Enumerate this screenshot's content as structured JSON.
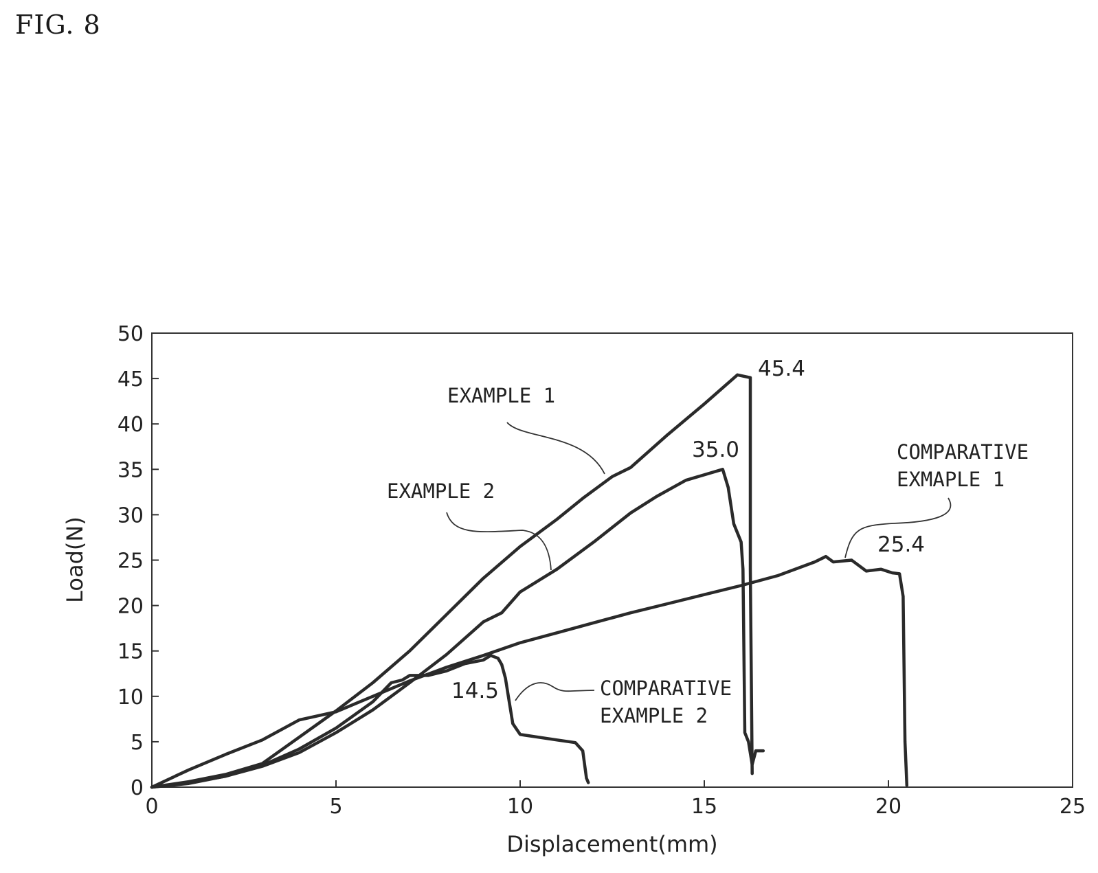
{
  "figure_label": "FIG. 8",
  "chart_data": {
    "type": "line",
    "xlabel": "Displacement(mm)",
    "ylabel": "Load(N)",
    "xlim": [
      0,
      25
    ],
    "ylim": [
      0,
      50
    ],
    "x_ticks": [
      0,
      5,
      10,
      15,
      20,
      25
    ],
    "y_ticks": [
      0,
      5,
      10,
      15,
      20,
      25,
      30,
      35,
      40,
      45,
      50
    ],
    "grid": false,
    "legend": "none",
    "series": [
      {
        "name": "EXAMPLE 1",
        "points": [
          [
            0,
            0
          ],
          [
            1,
            0.6
          ],
          [
            2,
            1.4
          ],
          [
            3,
            2.6
          ],
          [
            4,
            5.5
          ],
          [
            5,
            8.4
          ],
          [
            6,
            11.5
          ],
          [
            7,
            15
          ],
          [
            8,
            19
          ],
          [
            9,
            23
          ],
          [
            10,
            26.5
          ],
          [
            11,
            29.5
          ],
          [
            11.7,
            31.8
          ],
          [
            12.5,
            34.2
          ],
          [
            13,
            35.2
          ],
          [
            14,
            38.8
          ],
          [
            15,
            42.2
          ],
          [
            15.9,
            45.4
          ],
          [
            16.25,
            45.1
          ],
          [
            16.25,
            24
          ],
          [
            16.3,
            1.5
          ]
        ]
      },
      {
        "name": "EXAMPLE 2",
        "points": [
          [
            0,
            0
          ],
          [
            1,
            0.5
          ],
          [
            2,
            1.2
          ],
          [
            3,
            2.3
          ],
          [
            4,
            3.8
          ],
          [
            5,
            6
          ],
          [
            6,
            8.5
          ],
          [
            7,
            11.5
          ],
          [
            8,
            14.6
          ],
          [
            9,
            18.2
          ],
          [
            9.5,
            19.2
          ],
          [
            10,
            21.5
          ],
          [
            11,
            24
          ],
          [
            12,
            27
          ],
          [
            13,
            30.2
          ],
          [
            13.7,
            32
          ],
          [
            14.5,
            33.8
          ],
          [
            15.5,
            35
          ],
          [
            15.65,
            33
          ],
          [
            15.8,
            29
          ],
          [
            16,
            27
          ],
          [
            16.05,
            24
          ],
          [
            16.1,
            6
          ],
          [
            16.2,
            5
          ],
          [
            16.3,
            2.5
          ],
          [
            16.4,
            4
          ],
          [
            16.6,
            4
          ]
        ]
      },
      {
        "name": "COMPARATIVE EXMAPLE 1",
        "points": [
          [
            0,
            0
          ],
          [
            1,
            1.9
          ],
          [
            2,
            3.6
          ],
          [
            3,
            5.2
          ],
          [
            4,
            7.4
          ],
          [
            5,
            8.3
          ],
          [
            6,
            10
          ],
          [
            7,
            11.7
          ],
          [
            8,
            13.2
          ],
          [
            9,
            14.5
          ],
          [
            10,
            15.9
          ],
          [
            11,
            17
          ],
          [
            12,
            18.1
          ],
          [
            13,
            19.2
          ],
          [
            14,
            20.2
          ],
          [
            15,
            21.2
          ],
          [
            16,
            22.2
          ],
          [
            17,
            23.3
          ],
          [
            18,
            24.8
          ],
          [
            18.3,
            25.4
          ],
          [
            18.5,
            24.8
          ],
          [
            19,
            25
          ],
          [
            19.4,
            23.8
          ],
          [
            19.8,
            24
          ],
          [
            20.1,
            23.6
          ],
          [
            20.3,
            23.5
          ],
          [
            20.4,
            21
          ],
          [
            20.45,
            5
          ],
          [
            20.5,
            0.2
          ]
        ]
      },
      {
        "name": "COMPARATIVE EXAMPLE 2",
        "points": [
          [
            0,
            0
          ],
          [
            1,
            0.4
          ],
          [
            2,
            1.2
          ],
          [
            3,
            2.4
          ],
          [
            4,
            4.2
          ],
          [
            5,
            6.5
          ],
          [
            6,
            9.4
          ],
          [
            6.5,
            11.5
          ],
          [
            6.8,
            11.8
          ],
          [
            7,
            12.3
          ],
          [
            7.5,
            12.3
          ],
          [
            8,
            12.8
          ],
          [
            8.5,
            13.6
          ],
          [
            9,
            14
          ],
          [
            9.2,
            14.5
          ],
          [
            9.4,
            14.2
          ],
          [
            9.5,
            13.5
          ],
          [
            9.6,
            12
          ],
          [
            9.7,
            9.5
          ],
          [
            9.8,
            7
          ],
          [
            10,
            5.8
          ],
          [
            10.5,
            5.5
          ],
          [
            11,
            5.2
          ],
          [
            11.5,
            4.9
          ],
          [
            11.7,
            4
          ],
          [
            11.8,
            1
          ],
          [
            11.85,
            0.5
          ]
        ]
      }
    ],
    "annotations": {
      "labels": [
        "EXAMPLE 1",
        "EXAMPLE 2",
        "COMPARATIVE",
        "EXMAPLE 1",
        "COMPARATIVE",
        "EXAMPLE 2"
      ],
      "peaks": [
        {
          "text": "45.4",
          "x": 15.9,
          "y": 45.4
        },
        {
          "text": "35.0",
          "x": 15.5,
          "y": 35.0
        },
        {
          "text": "25.4",
          "x": 18.3,
          "y": 25.4
        },
        {
          "text": "14.5",
          "x": 9.2,
          "y": 14.5
        }
      ]
    }
  }
}
